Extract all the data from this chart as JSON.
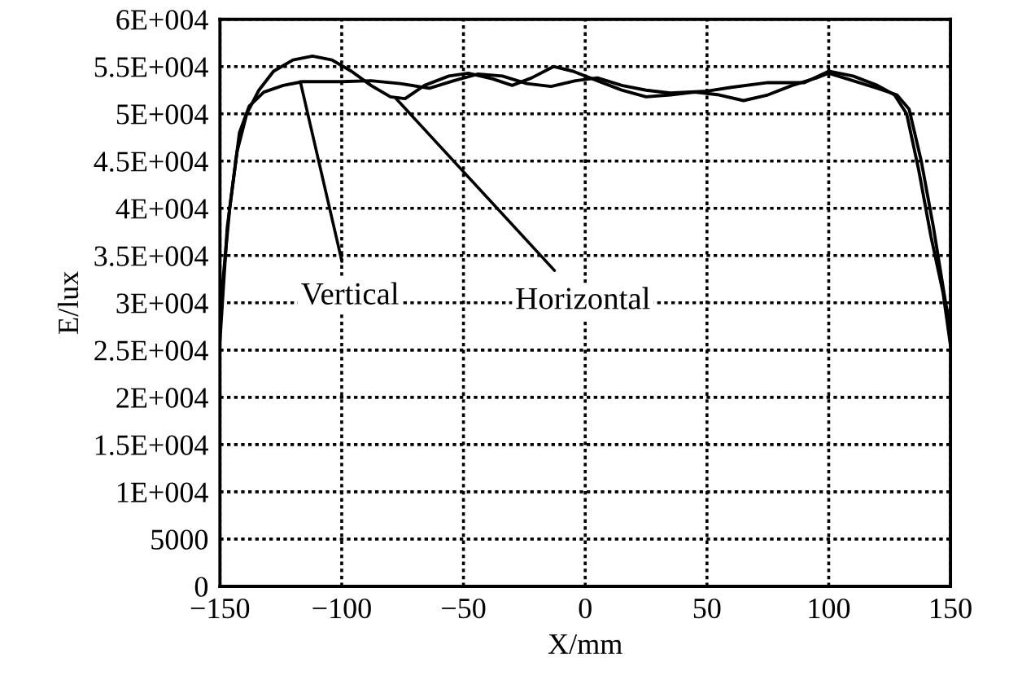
{
  "chart_data": {
    "type": "line",
    "xlabel": "X/mm",
    "ylabel": "E/lux",
    "xlim": [
      -150,
      150
    ],
    "xticks": [
      {
        "value": -150,
        "label": "−150"
      },
      {
        "value": -100,
        "label": "−100"
      },
      {
        "value": -50,
        "label": "−50"
      },
      0,
      50,
      100,
      150
    ],
    "ylim": [
      0,
      60000
    ],
    "yticks": [
      0,
      5000,
      {
        "value": 10000,
        "label": "1E+004"
      },
      {
        "value": 15000,
        "label": "1.5E+004"
      },
      {
        "value": 20000,
        "label": "2E+004"
      },
      {
        "value": 25000,
        "label": "2.5E+004"
      },
      {
        "value": 30000,
        "label": "3E+004"
      },
      {
        "value": 35000,
        "label": "3.5E+004"
      },
      {
        "value": 40000,
        "label": "4E+004"
      },
      {
        "value": 45000,
        "label": "4.5E+004"
      },
      {
        "value": 50000,
        "label": "5E+004"
      },
      {
        "value": 55000,
        "label": "5.5E+004"
      },
      {
        "value": 60000,
        "label": "6E+004"
      }
    ],
    "grid": true,
    "legend": false,
    "marker": "none",
    "line_style": "solid",
    "series": [
      {
        "color": "#000000",
        "x": [
          -150,
          -147,
          -143,
          -139,
          -134,
          -128,
          -120,
          -112,
          -104,
          -96,
          -88,
          -80,
          -74,
          -66,
          -56,
          -48,
          -38,
          -30,
          -22,
          -13,
          -5,
          5,
          15,
          25,
          35,
          45,
          55,
          65,
          75,
          85,
          95,
          100,
          110,
          120,
          128,
          133,
          138,
          143,
          148,
          150
        ],
        "values": [
          26000,
          38000,
          46000,
          50000,
          52500,
          54500,
          55700,
          56100,
          55700,
          54500,
          53000,
          51800,
          51600,
          53000,
          54000,
          54300,
          53700,
          53000,
          53800,
          55000,
          54500,
          53500,
          52500,
          51800,
          52000,
          52300,
          52000,
          51400,
          52000,
          53000,
          53800,
          54300,
          53500,
          52700,
          52000,
          50500,
          45000,
          38000,
          30000,
          27500
        ]
      },
      {
        "color": "#000000",
        "x": [
          -150,
          -146,
          -142,
          -138,
          -132,
          -124,
          -116,
          -100,
          -88,
          -76,
          -64,
          -54,
          -44,
          -34,
          -24,
          -14,
          -4,
          5,
          15,
          25,
          35,
          50,
          60,
          75,
          90,
          100,
          110,
          120,
          127,
          132,
          137,
          142,
          147,
          150
        ],
        "values": [
          29000,
          40000,
          48000,
          50800,
          52300,
          53000,
          53400,
          53400,
          53500,
          53200,
          52700,
          53500,
          54200,
          54000,
          53200,
          52900,
          53500,
          53800,
          53000,
          52500,
          52200,
          52400,
          52800,
          53300,
          53300,
          54500,
          54000,
          53000,
          52000,
          50000,
          44000,
          37000,
          31000,
          25500
        ]
      }
    ],
    "annotations": [
      {
        "text": "Vertical",
        "x": -117,
        "y": 53400
      },
      {
        "text": "Horizontal",
        "x": -78,
        "y": 51700
      }
    ]
  }
}
